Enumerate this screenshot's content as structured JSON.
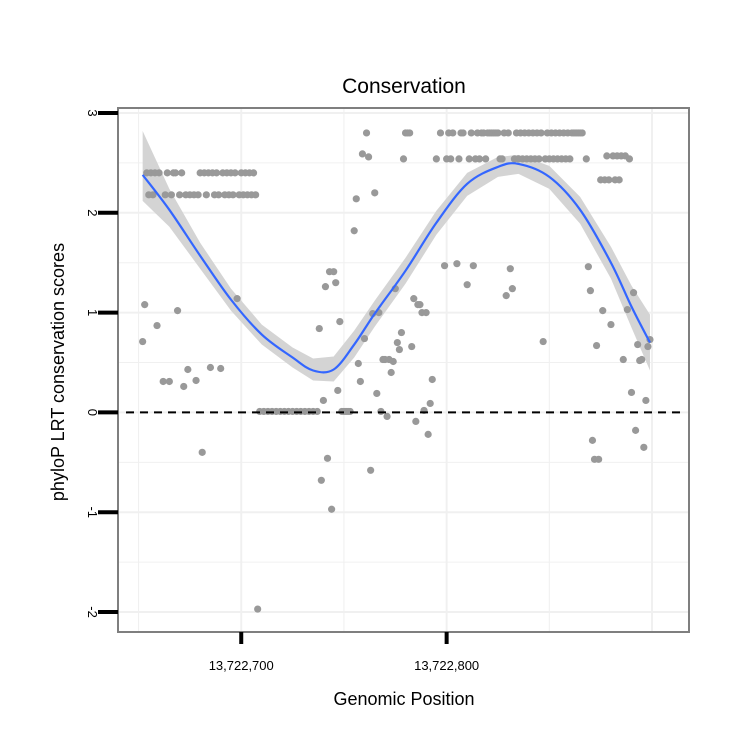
{
  "chart_data": {
    "type": "scatter",
    "title": "Conservation",
    "xlabel": "Genomic Position",
    "ylabel": "phyloP LRT conservation scores",
    "xlim": [
      13722640,
      13722918
    ],
    "ylim": [
      -2.2,
      3.05
    ],
    "x_ticks": [
      {
        "value": 13722700,
        "label": "13,722,700"
      },
      {
        "value": 13722800,
        "label": "13,722,800"
      }
    ],
    "y_ticks": [
      {
        "value": -2,
        "label": "-2"
      },
      {
        "value": -1,
        "label": "-1"
      },
      {
        "value": 0,
        "label": "0"
      },
      {
        "value": 1,
        "label": "1"
      },
      {
        "value": 2,
        "label": "2"
      },
      {
        "value": 3,
        "label": "3"
      }
    ],
    "reference_line": {
      "y": 0,
      "style": "dashed",
      "color": "#000000"
    },
    "grid": true,
    "colors": {
      "points": "#999999",
      "smooth": "#3366ff",
      "band": "#d4d4d4",
      "grid": "#f0f0f0",
      "panel_border": "#7f7f7f"
    },
    "points": [
      [
        13722652,
        0.71
      ],
      [
        13722653,
        1.08
      ],
      [
        13722654,
        2.4
      ],
      [
        13722655,
        2.18
      ],
      [
        13722656,
        2.4
      ],
      [
        13722657,
        2.18
      ],
      [
        13722658,
        2.4
      ],
      [
        13722659,
        0.87
      ],
      [
        13722660,
        2.4
      ],
      [
        13722662,
        0.31
      ],
      [
        13722663,
        2.18
      ],
      [
        13722664,
        2.4
      ],
      [
        13722665,
        0.31
      ],
      [
        13722666,
        2.18
      ],
      [
        13722667,
        2.4
      ],
      [
        13722668,
        2.4
      ],
      [
        13722669,
        1.02
      ],
      [
        13722670,
        2.18
      ],
      [
        13722671,
        2.4
      ],
      [
        13722672,
        0.26
      ],
      [
        13722673,
        2.18
      ],
      [
        13722674,
        0.43
      ],
      [
        13722675,
        2.18
      ],
      [
        13722677,
        2.18
      ],
      [
        13722678,
        0.32
      ],
      [
        13722679,
        2.18
      ],
      [
        13722680,
        2.4
      ],
      [
        13722681,
        -0.4
      ],
      [
        13722682,
        2.4
      ],
      [
        13722683,
        2.18
      ],
      [
        13722684,
        2.4
      ],
      [
        13722685,
        0.45
      ],
      [
        13722686,
        2.4
      ],
      [
        13722687,
        2.18
      ],
      [
        13722688,
        2.4
      ],
      [
        13722689,
        2.18
      ],
      [
        13722690,
        0.44
      ],
      [
        13722691,
        2.4
      ],
      [
        13722692,
        2.18
      ],
      [
        13722693,
        2.4
      ],
      [
        13722694,
        2.18
      ],
      [
        13722695,
        2.4
      ],
      [
        13722696,
        2.18
      ],
      [
        13722697,
        2.4
      ],
      [
        13722698,
        1.14
      ],
      [
        13722699,
        2.18
      ],
      [
        13722700,
        2.4
      ],
      [
        13722701,
        2.18
      ],
      [
        13722702,
        2.4
      ],
      [
        13722703,
        2.18
      ],
      [
        13722704,
        2.4
      ],
      [
        13722705,
        2.18
      ],
      [
        13722706,
        2.4
      ],
      [
        13722707,
        2.18
      ],
      [
        13722708,
        -1.97
      ],
      [
        13722709,
        0.01
      ],
      [
        13722711,
        0.01
      ],
      [
        13722713,
        0.01
      ],
      [
        13722715,
        0.01
      ],
      [
        13722717,
        0.01
      ],
      [
        13722719,
        0.01
      ],
      [
        13722721,
        0.01
      ],
      [
        13722723,
        0.01
      ],
      [
        13722725,
        0.01
      ],
      [
        13722727,
        0.01
      ],
      [
        13722729,
        0.01
      ],
      [
        13722731,
        0.01
      ],
      [
        13722733,
        0.01
      ],
      [
        13722735,
        0.01
      ],
      [
        13722737,
        0.01
      ],
      [
        13722738,
        0.84
      ],
      [
        13722739,
        -0.68
      ],
      [
        13722740,
        0.12
      ],
      [
        13722741,
        1.26
      ],
      [
        13722742,
        -0.46
      ],
      [
        13722743,
        1.41
      ],
      [
        13722744,
        -0.97
      ],
      [
        13722745,
        1.41
      ],
      [
        13722746,
        1.3
      ],
      [
        13722747,
        0.22
      ],
      [
        13722748,
        0.91
      ],
      [
        13722749,
        0.01
      ],
      [
        13722750,
        0.01
      ],
      [
        13722751,
        0.01
      ],
      [
        13722752,
        0.01
      ],
      [
        13722753,
        0.01
      ],
      [
        13722755,
        1.82
      ],
      [
        13722756,
        2.14
      ],
      [
        13722757,
        0.49
      ],
      [
        13722758,
        0.31
      ],
      [
        13722759,
        2.59
      ],
      [
        13722760,
        0.74
      ],
      [
        13722761,
        2.8
      ],
      [
        13722762,
        2.56
      ],
      [
        13722763,
        -0.58
      ],
      [
        13722764,
        0.99
      ],
      [
        13722765,
        2.2
      ],
      [
        13722766,
        0.19
      ],
      [
        13722767,
        1.0
      ],
      [
        13722768,
        0.01
      ],
      [
        13722769,
        0.53
      ],
      [
        13722770,
        0.53
      ],
      [
        13722771,
        -0.04
      ],
      [
        13722772,
        0.53
      ],
      [
        13722773,
        0.4
      ],
      [
        13722774,
        0.51
      ],
      [
        13722775,
        1.24
      ],
      [
        13722776,
        0.7
      ],
      [
        13722777,
        0.63
      ],
      [
        13722778,
        0.8
      ],
      [
        13722779,
        2.54
      ],
      [
        13722780,
        2.8
      ],
      [
        13722781,
        2.8
      ],
      [
        13722782,
        2.8
      ],
      [
        13722783,
        0.66
      ],
      [
        13722784,
        1.14
      ],
      [
        13722785,
        -0.09
      ],
      [
        13722786,
        1.08
      ],
      [
        13722787,
        1.08
      ],
      [
        13722788,
        1.0
      ],
      [
        13722789,
        0.02
      ],
      [
        13722790,
        1.0
      ],
      [
        13722791,
        -0.22
      ],
      [
        13722792,
        0.09
      ],
      [
        13722793,
        0.33
      ],
      [
        13722795,
        2.54
      ],
      [
        13722797,
        2.8
      ],
      [
        13722799,
        1.47
      ],
      [
        13722800,
        2.54
      ],
      [
        13722801,
        2.8
      ],
      [
        13722802,
        2.54
      ],
      [
        13722803,
        2.8
      ],
      [
        13722805,
        1.49
      ],
      [
        13722806,
        2.54
      ],
      [
        13722807,
        2.8
      ],
      [
        13722808,
        2.8
      ],
      [
        13722810,
        1.28
      ],
      [
        13722811,
        2.54
      ],
      [
        13722812,
        2.8
      ],
      [
        13722813,
        1.47
      ],
      [
        13722814,
        2.54
      ],
      [
        13722815,
        2.8
      ],
      [
        13722816,
        2.54
      ],
      [
        13722817,
        2.8
      ],
      [
        13722818,
        2.8
      ],
      [
        13722819,
        2.54
      ],
      [
        13722820,
        2.8
      ],
      [
        13722821,
        2.8
      ],
      [
        13722822,
        2.8
      ],
      [
        13722823,
        2.8
      ],
      [
        13722824,
        2.8
      ],
      [
        13722825,
        2.8
      ],
      [
        13722826,
        2.54
      ],
      [
        13722827,
        2.54
      ],
      [
        13722828,
        2.8
      ],
      [
        13722829,
        1.17
      ],
      [
        13722830,
        2.8
      ],
      [
        13722831,
        1.44
      ],
      [
        13722832,
        1.24
      ],
      [
        13722833,
        2.54
      ],
      [
        13722834,
        2.8
      ],
      [
        13722835,
        2.54
      ],
      [
        13722836,
        2.8
      ],
      [
        13722837,
        2.54
      ],
      [
        13722838,
        2.8
      ],
      [
        13722839,
        2.54
      ],
      [
        13722840,
        2.8
      ],
      [
        13722841,
        2.54
      ],
      [
        13722842,
        2.8
      ],
      [
        13722843,
        2.54
      ],
      [
        13722844,
        2.8
      ],
      [
        13722845,
        2.54
      ],
      [
        13722846,
        2.8
      ],
      [
        13722847,
        0.71
      ],
      [
        13722848,
        2.54
      ],
      [
        13722849,
        2.8
      ],
      [
        13722850,
        2.54
      ],
      [
        13722851,
        2.8
      ],
      [
        13722852,
        2.54
      ],
      [
        13722853,
        2.8
      ],
      [
        13722854,
        2.54
      ],
      [
        13722855,
        2.8
      ],
      [
        13722856,
        2.54
      ],
      [
        13722857,
        2.8
      ],
      [
        13722858,
        2.54
      ],
      [
        13722859,
        2.8
      ],
      [
        13722860,
        2.54
      ],
      [
        13722861,
        2.8
      ],
      [
        13722862,
        2.8
      ],
      [
        13722863,
        2.8
      ],
      [
        13722864,
        2.8
      ],
      [
        13722865,
        2.8
      ],
      [
        13722866,
        2.8
      ],
      [
        13722868,
        2.54
      ],
      [
        13722869,
        1.46
      ],
      [
        13722870,
        1.22
      ],
      [
        13722871,
        -0.28
      ],
      [
        13722872,
        -0.47
      ],
      [
        13722873,
        0.67
      ],
      [
        13722874,
        -0.47
      ],
      [
        13722875,
        2.33
      ],
      [
        13722876,
        1.02
      ],
      [
        13722877,
        2.33
      ],
      [
        13722878,
        2.57
      ],
      [
        13722879,
        2.33
      ],
      [
        13722880,
        0.88
      ],
      [
        13722881,
        2.57
      ],
      [
        13722882,
        2.33
      ],
      [
        13722883,
        2.57
      ],
      [
        13722884,
        2.33
      ],
      [
        13722885,
        2.57
      ],
      [
        13722886,
        0.53
      ],
      [
        13722887,
        2.57
      ],
      [
        13722888,
        1.03
      ],
      [
        13722889,
        2.54
      ],
      [
        13722890,
        0.2
      ],
      [
        13722891,
        1.2
      ],
      [
        13722892,
        -0.18
      ],
      [
        13722893,
        0.68
      ],
      [
        13722894,
        0.52
      ],
      [
        13722895,
        0.53
      ],
      [
        13722896,
        -0.35
      ],
      [
        13722897,
        0.12
      ],
      [
        13722898,
        0.66
      ],
      [
        13722899,
        0.73
      ]
    ],
    "smooth": [
      {
        "x": 13722652,
        "y": 2.38,
        "lo": 2.12,
        "hi": 2.82
      },
      {
        "x": 13722665,
        "y": 2.03,
        "lo": 1.86,
        "hi": 2.24
      },
      {
        "x": 13722680,
        "y": 1.57,
        "lo": 1.44,
        "hi": 1.7
      },
      {
        "x": 13722695,
        "y": 1.13,
        "lo": 1.02,
        "hi": 1.24
      },
      {
        "x": 13722710,
        "y": 0.78,
        "lo": 0.68,
        "hi": 0.88
      },
      {
        "x": 13722725,
        "y": 0.55,
        "lo": 0.45,
        "hi": 0.65
      },
      {
        "x": 13722735,
        "y": 0.42,
        "lo": 0.32,
        "hi": 0.54
      },
      {
        "x": 13722745,
        "y": 0.43,
        "lo": 0.31,
        "hi": 0.56
      },
      {
        "x": 13722755,
        "y": 0.68,
        "lo": 0.55,
        "hi": 0.82
      },
      {
        "x": 13722765,
        "y": 0.99,
        "lo": 0.86,
        "hi": 1.12
      },
      {
        "x": 13722780,
        "y": 1.42,
        "lo": 1.29,
        "hi": 1.55
      },
      {
        "x": 13722795,
        "y": 1.9,
        "lo": 1.78,
        "hi": 2.02
      },
      {
        "x": 13722810,
        "y": 2.29,
        "lo": 2.17,
        "hi": 2.4
      },
      {
        "x": 13722825,
        "y": 2.46,
        "lo": 2.36,
        "hi": 2.56
      },
      {
        "x": 13722835,
        "y": 2.49,
        "lo": 2.39,
        "hi": 2.58
      },
      {
        "x": 13722850,
        "y": 2.36,
        "lo": 2.24,
        "hi": 2.47
      },
      {
        "x": 13722865,
        "y": 2.03,
        "lo": 1.89,
        "hi": 2.16
      },
      {
        "x": 13722880,
        "y": 1.5,
        "lo": 1.34,
        "hi": 1.66
      },
      {
        "x": 13722890,
        "y": 1.06,
        "lo": 0.85,
        "hi": 1.27
      },
      {
        "x": 13722899,
        "y": 0.7,
        "lo": 0.42,
        "hi": 0.98
      }
    ]
  }
}
